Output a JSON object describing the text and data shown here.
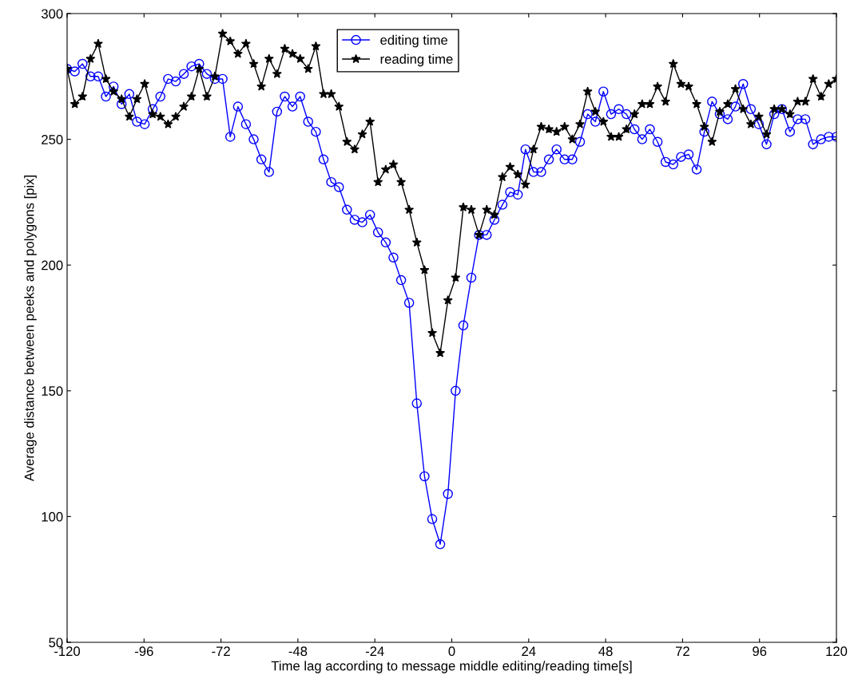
{
  "chart_data": {
    "type": "line",
    "xlabel": "Time lag according to message middle editing/reading time[s]",
    "ylabel": "Average distance between peeks and polygons [pix]",
    "x": [
      -120,
      -117.6,
      -115.2,
      -112.7,
      -110.3,
      -107.9,
      -105.5,
      -103.0,
      -100.6,
      -98.2,
      -95.8,
      -93.3,
      -90.9,
      -88.5,
      -86.1,
      -83.6,
      -81.2,
      -78.8,
      -76.4,
      -73.9,
      -71.5,
      -69.1,
      -66.7,
      -64.2,
      -61.8,
      -59.4,
      -57.0,
      -54.5,
      -52.1,
      -49.7,
      -47.3,
      -44.8,
      -42.4,
      -40.0,
      -37.6,
      -35.2,
      -32.7,
      -30.3,
      -27.9,
      -25.5,
      -23.0,
      -20.6,
      -18.2,
      -15.8,
      -13.3,
      -10.9,
      -8.5,
      -6.1,
      -3.6,
      -1.2,
      1.2,
      3.6,
      6.1,
      8.5,
      10.9,
      13.3,
      15.8,
      18.2,
      20.6,
      23.0,
      25.5,
      27.9,
      30.3,
      32.7,
      35.2,
      37.6,
      40.0,
      42.4,
      44.8,
      47.3,
      49.7,
      52.1,
      54.5,
      57.0,
      59.4,
      61.8,
      64.2,
      66.7,
      69.1,
      71.5,
      73.9,
      76.4,
      78.8,
      81.2,
      83.6,
      86.1,
      88.5,
      90.9,
      93.3,
      95.8,
      98.2,
      100.6,
      103.0,
      105.5,
      107.9,
      110.3,
      112.7,
      115.2,
      117.6,
      120
    ],
    "series": [
      {
        "name": "editing time",
        "color": "#0000ff",
        "marker": "circle",
        "values": [
          278,
          277,
          280,
          275,
          275,
          267,
          271,
          264,
          268,
          257,
          256,
          262,
          267,
          274,
          273,
          276,
          279,
          280,
          276,
          274,
          274,
          251,
          263,
          256,
          250,
          242,
          237,
          261,
          267,
          263,
          267,
          257,
          253,
          242,
          233,
          231,
          222,
          218,
          217,
          220,
          213,
          209,
          203,
          194,
          185,
          145,
          116,
          99,
          89,
          109,
          150,
          176,
          195,
          212,
          212,
          218,
          224,
          229,
          228,
          246,
          237,
          237,
          242,
          246,
          242,
          242,
          249,
          260,
          257,
          269,
          260,
          262,
          260,
          254,
          250,
          254,
          249,
          241,
          240,
          243,
          244,
          238,
          253,
          265,
          260,
          258,
          263,
          272,
          262,
          256,
          248,
          260,
          262,
          253,
          258,
          258,
          248,
          250,
          251,
          251
        ]
      },
      {
        "name": "reading time",
        "color": "#000000",
        "marker": "star",
        "values": [
          278,
          264,
          267,
          282,
          288,
          274,
          269,
          266,
          259,
          266,
          272,
          260,
          259,
          256,
          259,
          263,
          267,
          278,
          267,
          275,
          292,
          289,
          284,
          288,
          280,
          271,
          282,
          276,
          286,
          284,
          282,
          278,
          287,
          268,
          268,
          263,
          249,
          246,
          252,
          257,
          233,
          238,
          240,
          233,
          222,
          209,
          198,
          173,
          165,
          186,
          195,
          223,
          222,
          212,
          222,
          220,
          235,
          239,
          236,
          232,
          246,
          255,
          254,
          253,
          255,
          250,
          256,
          269,
          261,
          257,
          251,
          251,
          254,
          260,
          264,
          264,
          271,
          265,
          280,
          272,
          271,
          264,
          255,
          249,
          261,
          264,
          270,
          262,
          256,
          259,
          252,
          262,
          262,
          260,
          265,
          265,
          274,
          267,
          272,
          274
        ]
      }
    ],
    "xlim": [
      -120,
      120
    ],
    "xticks": [
      -120,
      -96,
      -72,
      -48,
      -24,
      0,
      24,
      48,
      72,
      96,
      120
    ],
    "ylim": [
      50,
      300
    ],
    "yticks": [
      50,
      100,
      150,
      200,
      250,
      300
    ],
    "legend": "top",
    "grid": false
  }
}
